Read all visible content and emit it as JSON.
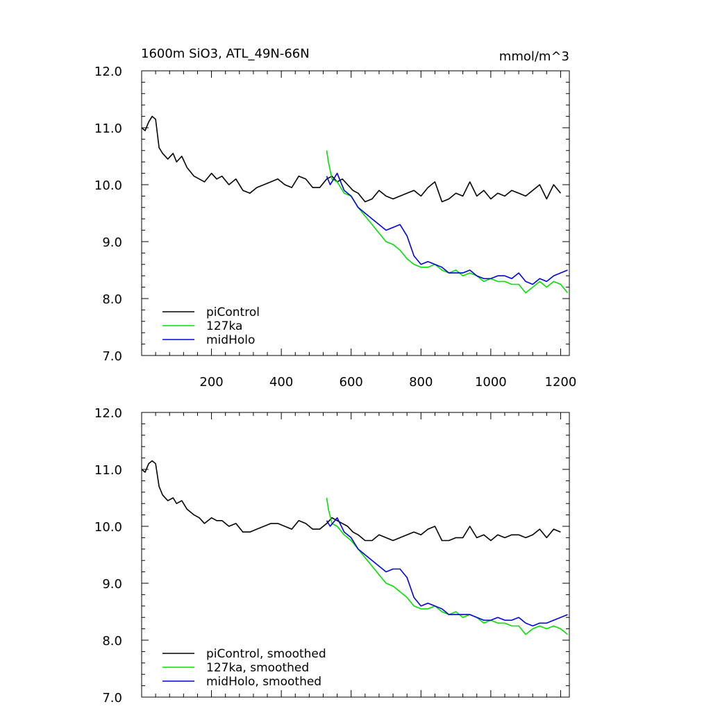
{
  "figure": {
    "title": "1600m SiO3, ATL_49N-66N",
    "units": "mmol/m^3"
  },
  "chart_data": [
    {
      "type": "line",
      "panel": "top",
      "title": "1600m SiO3, ATL_49N-66N",
      "units_label": "mmol/m^3",
      "xlim": [
        0,
        1225
      ],
      "ylim": [
        7.0,
        12.0
      ],
      "xticks": [
        200,
        400,
        600,
        800,
        1000,
        1200
      ],
      "xtick_labels": [
        "200",
        "400",
        "600",
        "800",
        "1000",
        "1200"
      ],
      "yticks": [
        7.0,
        8.0,
        9.0,
        10.0,
        11.0,
        12.0
      ],
      "ytick_labels": [
        "7.0",
        "8.0",
        "9.0",
        "10.0",
        "11.0",
        "12.0"
      ],
      "legend_position": "bottom-left",
      "series": [
        {
          "name": "piControl",
          "color": "#000000",
          "x": [
            0,
            10,
            20,
            30,
            40,
            50,
            60,
            75,
            90,
            100,
            115,
            130,
            150,
            165,
            180,
            200,
            215,
            230,
            250,
            270,
            290,
            310,
            330,
            350,
            370,
            390,
            410,
            430,
            450,
            470,
            490,
            510,
            530,
            545,
            560,
            575,
            590,
            605,
            620,
            640,
            660,
            680,
            700,
            720,
            740,
            760,
            780,
            800,
            820,
            840,
            860,
            880,
            900,
            920,
            940,
            960,
            980,
            1000,
            1020,
            1040,
            1060,
            1080,
            1100,
            1120,
            1140,
            1160,
            1180,
            1200
          ],
          "y": [
            11.0,
            10.95,
            11.1,
            11.2,
            11.15,
            10.65,
            10.55,
            10.45,
            10.55,
            10.4,
            10.5,
            10.3,
            10.15,
            10.1,
            10.05,
            10.2,
            10.1,
            10.15,
            10.0,
            10.1,
            9.9,
            9.85,
            9.95,
            10.0,
            10.05,
            10.1,
            10.0,
            9.95,
            10.15,
            10.1,
            9.95,
            9.95,
            10.1,
            10.15,
            10.05,
            10.1,
            10.0,
            9.9,
            9.85,
            9.7,
            9.75,
            9.9,
            9.8,
            9.75,
            9.8,
            9.85,
            9.9,
            9.8,
            9.95,
            10.05,
            9.7,
            9.75,
            9.85,
            9.8,
            10.05,
            9.8,
            9.9,
            9.75,
            9.85,
            9.8,
            9.9,
            9.85,
            9.8,
            9.9,
            10.0,
            9.75,
            10.0,
            9.85
          ]
        },
        {
          "name": "127ka",
          "color": "#00e000",
          "x": [
            530,
            535,
            545,
            560,
            580,
            600,
            620,
            640,
            660,
            680,
            700,
            720,
            740,
            760,
            780,
            800,
            820,
            840,
            860,
            880,
            900,
            920,
            940,
            960,
            980,
            1000,
            1020,
            1040,
            1060,
            1080,
            1100,
            1120,
            1140,
            1160,
            1180,
            1200,
            1220
          ],
          "y": [
            10.6,
            10.4,
            10.1,
            10.05,
            9.85,
            9.8,
            9.6,
            9.45,
            9.3,
            9.15,
            9.0,
            8.95,
            8.85,
            8.7,
            8.6,
            8.55,
            8.55,
            8.6,
            8.5,
            8.45,
            8.5,
            8.4,
            8.45,
            8.4,
            8.3,
            8.35,
            8.3,
            8.3,
            8.25,
            8.25,
            8.1,
            8.2,
            8.3,
            8.2,
            8.3,
            8.25,
            8.1
          ]
        },
        {
          "name": "midHolo",
          "color": "#0000e0",
          "x": [
            530,
            540,
            560,
            580,
            600,
            620,
            640,
            660,
            680,
            700,
            720,
            740,
            760,
            780,
            800,
            820,
            840,
            860,
            880,
            900,
            920,
            940,
            960,
            980,
            1000,
            1020,
            1040,
            1060,
            1080,
            1100,
            1120,
            1140,
            1160,
            1180,
            1200,
            1220
          ],
          "y": [
            10.15,
            10.0,
            10.2,
            9.9,
            9.8,
            9.6,
            9.5,
            9.4,
            9.3,
            9.2,
            9.25,
            9.3,
            9.1,
            8.75,
            8.6,
            8.65,
            8.6,
            8.55,
            8.45,
            8.45,
            8.45,
            8.5,
            8.4,
            8.35,
            8.35,
            8.4,
            8.4,
            8.35,
            8.45,
            8.3,
            8.25,
            8.35,
            8.3,
            8.4,
            8.45,
            8.5
          ]
        }
      ]
    },
    {
      "type": "line",
      "panel": "bottom",
      "xlim": [
        0,
        1225
      ],
      "ylim": [
        7.0,
        12.0
      ],
      "yticks": [
        7.0,
        8.0,
        9.0,
        10.0,
        11.0,
        12.0
      ],
      "ytick_labels": [
        "7.0",
        "8.0",
        "9.0",
        "10.0",
        "11.0",
        "12.0"
      ],
      "legend_position": "bottom-left",
      "series": [
        {
          "name": "piControl, smoothed",
          "color": "#000000",
          "x": [
            0,
            10,
            20,
            30,
            40,
            50,
            60,
            75,
            90,
            100,
            115,
            130,
            150,
            165,
            180,
            200,
            215,
            230,
            250,
            270,
            290,
            310,
            330,
            350,
            370,
            390,
            410,
            430,
            450,
            470,
            490,
            510,
            530,
            545,
            560,
            575,
            590,
            605,
            620,
            640,
            660,
            680,
            700,
            720,
            740,
            760,
            780,
            800,
            820,
            840,
            860,
            880,
            900,
            920,
            940,
            960,
            980,
            1000,
            1020,
            1040,
            1060,
            1080,
            1100,
            1120,
            1140,
            1160,
            1180,
            1200
          ],
          "y": [
            11.0,
            10.95,
            11.1,
            11.15,
            11.1,
            10.7,
            10.55,
            10.45,
            10.5,
            10.4,
            10.45,
            10.3,
            10.2,
            10.15,
            10.05,
            10.15,
            10.1,
            10.1,
            10.0,
            10.05,
            9.9,
            9.9,
            9.95,
            10.0,
            10.05,
            10.05,
            10.0,
            9.95,
            10.1,
            10.05,
            9.95,
            9.95,
            10.05,
            10.15,
            10.1,
            10.05,
            10.0,
            9.9,
            9.85,
            9.75,
            9.75,
            9.85,
            9.8,
            9.75,
            9.8,
            9.85,
            9.9,
            9.85,
            9.95,
            10.0,
            9.75,
            9.75,
            9.8,
            9.8,
            10.0,
            9.8,
            9.85,
            9.75,
            9.85,
            9.8,
            9.85,
            9.85,
            9.8,
            9.85,
            9.95,
            9.8,
            9.95,
            9.9
          ]
        },
        {
          "name": "127ka, smoothed",
          "color": "#00e000",
          "x": [
            530,
            535,
            545,
            560,
            580,
            600,
            620,
            640,
            660,
            680,
            700,
            720,
            740,
            760,
            780,
            800,
            820,
            840,
            860,
            880,
            900,
            920,
            940,
            960,
            980,
            1000,
            1020,
            1040,
            1060,
            1080,
            1100,
            1120,
            1140,
            1160,
            1180,
            1200,
            1220
          ],
          "y": [
            10.5,
            10.3,
            10.05,
            10.0,
            9.85,
            9.75,
            9.6,
            9.45,
            9.3,
            9.15,
            9.0,
            8.95,
            8.85,
            8.75,
            8.6,
            8.55,
            8.55,
            8.6,
            8.5,
            8.45,
            8.5,
            8.4,
            8.45,
            8.4,
            8.3,
            8.35,
            8.3,
            8.3,
            8.25,
            8.25,
            8.1,
            8.2,
            8.25,
            8.2,
            8.25,
            8.2,
            8.1
          ]
        },
        {
          "name": "midHolo, smoothed",
          "color": "#0000e0",
          "x": [
            530,
            540,
            560,
            580,
            600,
            620,
            640,
            660,
            680,
            700,
            720,
            740,
            760,
            780,
            800,
            820,
            840,
            860,
            880,
            900,
            920,
            940,
            960,
            980,
            1000,
            1020,
            1040,
            1060,
            1080,
            1100,
            1120,
            1140,
            1160,
            1180,
            1200,
            1220
          ],
          "y": [
            10.1,
            10.0,
            10.15,
            9.9,
            9.8,
            9.6,
            9.5,
            9.4,
            9.3,
            9.2,
            9.25,
            9.25,
            9.1,
            8.75,
            8.6,
            8.65,
            8.6,
            8.55,
            8.45,
            8.45,
            8.45,
            8.45,
            8.4,
            8.35,
            8.35,
            8.4,
            8.35,
            8.35,
            8.4,
            8.3,
            8.25,
            8.3,
            8.3,
            8.35,
            8.4,
            8.45
          ]
        }
      ]
    }
  ]
}
